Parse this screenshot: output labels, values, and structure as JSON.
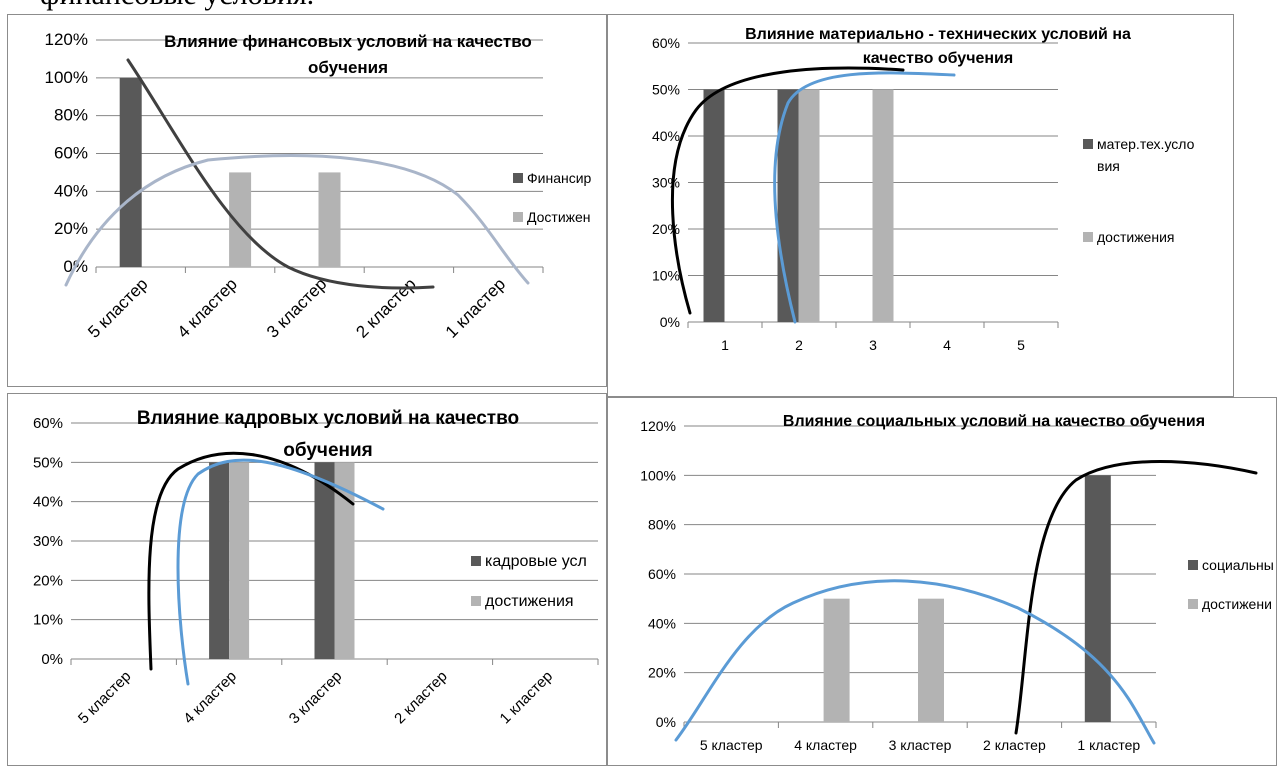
{
  "header_text": "финансовые условия.",
  "chart_data": [
    {
      "type": "bar",
      "title": "Влияние финансовых условий на качество обучения",
      "title_lines": [
        "Влияние финансовых условий на качество",
        "обучения"
      ],
      "categories": [
        "5 кластер",
        "4 кластер",
        "3 кластер",
        "2 кластер",
        "1 кластер"
      ],
      "series": [
        {
          "name": "Финансир",
          "values": [
            100,
            0,
            0,
            0,
            0
          ],
          "color": "#595959"
        },
        {
          "name": "Достижен",
          "values": [
            0,
            50,
            50,
            0,
            0
          ],
          "color": "#b3b3b3"
        }
      ],
      "ylim": [
        0,
        120
      ],
      "yticks": [
        "0%",
        "20%",
        "40%",
        "60%",
        "80%",
        "100%",
        "120%"
      ],
      "legend": "right",
      "x_labels_rotated": true,
      "grid": true
    },
    {
      "type": "bar",
      "title": "Влияние материально - технических условий на качество обучения",
      "title_lines": [
        "Влияние материально - технических условий на",
        "качество обучения"
      ],
      "categories": [
        "1",
        "2",
        "3",
        "4",
        "5"
      ],
      "series": [
        {
          "name": "матер.тех.условия",
          "legend_lines": [
            "матер.тех.усло",
            "вия"
          ],
          "values": [
            50,
            50,
            0,
            0,
            0
          ],
          "color": "#595959"
        },
        {
          "name": "достижения",
          "values": [
            0,
            50,
            50,
            0,
            0
          ],
          "color": "#b3b3b3"
        }
      ],
      "ylim": [
        0,
        60
      ],
      "yticks": [
        "0%",
        "10%",
        "20%",
        "30%",
        "40%",
        "50%",
        "60%"
      ],
      "legend": "right",
      "x_labels_rotated": false,
      "grid": true
    },
    {
      "type": "bar",
      "title": "Влияние кадровых условий на качество обучения",
      "title_lines": [
        "Влияние кадровых условий на качество",
        "обучения"
      ],
      "categories": [
        "5 кластер",
        "4 кластер",
        "3 кластер",
        "2 кластер",
        "1 кластер"
      ],
      "series": [
        {
          "name": "кадровые усл",
          "values": [
            0,
            50,
            50,
            0,
            0
          ],
          "color": "#595959"
        },
        {
          "name": "достижения",
          "values": [
            0,
            50,
            50,
            0,
            0
          ],
          "color": "#b3b3b3"
        }
      ],
      "ylim": [
        0,
        60
      ],
      "yticks": [
        "0%",
        "10%",
        "20%",
        "30%",
        "40%",
        "50%",
        "60%"
      ],
      "legend": "right",
      "x_labels_rotated": true,
      "grid": true
    },
    {
      "type": "bar",
      "title": "Влияние социальных условий на качество обучения",
      "title_lines": [
        "Влияние социальных условий на качество обучения"
      ],
      "categories": [
        "5 кластер",
        "4 кластер",
        "3 кластер",
        "2 кластер",
        "1 кластер"
      ],
      "series": [
        {
          "name": "социальны",
          "values": [
            0,
            0,
            0,
            0,
            100
          ],
          "color": "#595959"
        },
        {
          "name": "достижени",
          "values": [
            0,
            50,
            50,
            0,
            0
          ],
          "color": "#b3b3b3"
        }
      ],
      "ylim": [
        0,
        120
      ],
      "yticks": [
        "0%",
        "20%",
        "40%",
        "60%",
        "80%",
        "100%",
        "120%"
      ],
      "legend": "right",
      "x_labels_rotated": false,
      "grid": true
    }
  ]
}
